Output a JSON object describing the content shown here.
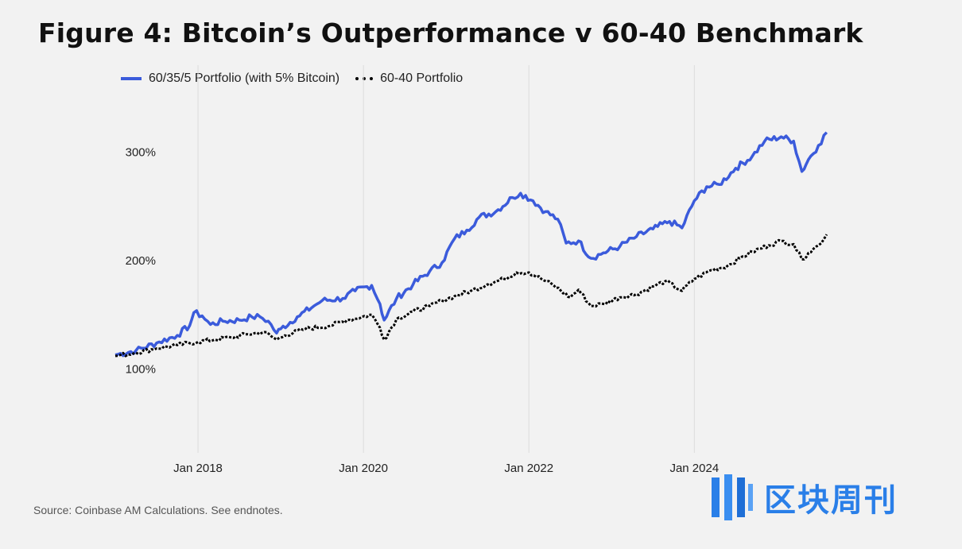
{
  "title": "Figure 4: Bitcoin’s Outperformance v 60-40 Benchmark",
  "source": "Source: Coinbase AM Calculations. See endnotes.",
  "watermark": {
    "text": "区块周刊"
  },
  "colors": {
    "series1": "#3b5bdb",
    "series2": "#000000",
    "grid": "#dcdcdc",
    "background": "#f2f2f2"
  },
  "chart_data": {
    "type": "line",
    "title": "Figure 4: Bitcoin’s Outperformance v 60-40 Benchmark",
    "xlabel": "",
    "ylabel": "",
    "xlim": [
      2017.0,
      2024.95
    ],
    "ylim": [
      30,
      380
    ],
    "grid": "vertical",
    "legend_position": "top-left",
    "x_ticks": [
      {
        "value": 2018,
        "label": "Jan 2018"
      },
      {
        "value": 2020,
        "label": "Jan 2020"
      },
      {
        "value": 2022,
        "label": "Jan 2022"
      },
      {
        "value": 2024,
        "label": "Jan 2024"
      }
    ],
    "y_ticks": [
      {
        "value": 100,
        "label": "100%"
      },
      {
        "value": 200,
        "label": "200%"
      },
      {
        "value": 300,
        "label": "300%"
      }
    ],
    "series": [
      {
        "name": "60/35/5 Portfolio (with 5% Bitcoin)",
        "color": "#3b5bdb",
        "style": "solid",
        "points": [
          [
            2017.0,
            113
          ],
          [
            2017.25,
            117
          ],
          [
            2017.5,
            124
          ],
          [
            2017.75,
            131
          ],
          [
            2017.9,
            140
          ],
          [
            2017.95,
            152
          ],
          [
            2018.05,
            149
          ],
          [
            2018.15,
            141
          ],
          [
            2018.3,
            144
          ],
          [
            2018.5,
            145
          ],
          [
            2018.65,
            148
          ],
          [
            2018.75,
            148
          ],
          [
            2018.85,
            144
          ],
          [
            2018.95,
            133
          ],
          [
            2019.0,
            137
          ],
          [
            2019.2,
            148
          ],
          [
            2019.4,
            158
          ],
          [
            2019.5,
            163
          ],
          [
            2019.75,
            165
          ],
          [
            2019.9,
            172
          ],
          [
            2020.1,
            177
          ],
          [
            2020.2,
            160
          ],
          [
            2020.25,
            145
          ],
          [
            2020.4,
            165
          ],
          [
            2020.6,
            178
          ],
          [
            2020.8,
            190
          ],
          [
            2020.95,
            198
          ],
          [
            2021.1,
            220
          ],
          [
            2021.25,
            228
          ],
          [
            2021.4,
            240
          ],
          [
            2021.6,
            245
          ],
          [
            2021.8,
            258
          ],
          [
            2021.9,
            262
          ],
          [
            2022.05,
            255
          ],
          [
            2022.2,
            245
          ],
          [
            2022.35,
            238
          ],
          [
            2022.45,
            216
          ],
          [
            2022.6,
            218
          ],
          [
            2022.75,
            202
          ],
          [
            2022.9,
            207
          ],
          [
            2023.1,
            213
          ],
          [
            2023.3,
            222
          ],
          [
            2023.5,
            229
          ],
          [
            2023.7,
            236
          ],
          [
            2023.85,
            230
          ],
          [
            2024.0,
            255
          ],
          [
            2024.15,
            268
          ],
          [
            2024.3,
            270
          ],
          [
            2024.5,
            285
          ],
          [
            2024.7,
            296
          ],
          [
            2024.85,
            310
          ],
          [
            2025.05,
            314
          ],
          [
            2025.2,
            310
          ],
          [
            2025.3,
            282
          ],
          [
            2025.38,
            293
          ],
          [
            2025.5,
            306
          ],
          [
            2025.6,
            318
          ]
        ]
      },
      {
        "name": "60-40 Portfolio",
        "color": "#000000",
        "style": "dotted",
        "points": [
          [
            2017.0,
            112
          ],
          [
            2017.25,
            115
          ],
          [
            2017.5,
            119
          ],
          [
            2017.75,
            122
          ],
          [
            2018.0,
            125
          ],
          [
            2018.2,
            127
          ],
          [
            2018.4,
            129
          ],
          [
            2018.6,
            132
          ],
          [
            2018.8,
            134
          ],
          [
            2018.95,
            127
          ],
          [
            2019.05,
            131
          ],
          [
            2019.3,
            137
          ],
          [
            2019.6,
            140
          ],
          [
            2019.8,
            145
          ],
          [
            2020.1,
            150
          ],
          [
            2020.2,
            138
          ],
          [
            2020.25,
            127
          ],
          [
            2020.4,
            146
          ],
          [
            2020.6,
            153
          ],
          [
            2020.8,
            158
          ],
          [
            2020.95,
            163
          ],
          [
            2021.1,
            167
          ],
          [
            2021.3,
            172
          ],
          [
            2021.5,
            178
          ],
          [
            2021.7,
            183
          ],
          [
            2021.85,
            189
          ],
          [
            2022.0,
            189
          ],
          [
            2022.15,
            183
          ],
          [
            2022.3,
            177
          ],
          [
            2022.5,
            166
          ],
          [
            2022.6,
            173
          ],
          [
            2022.75,
            158
          ],
          [
            2022.9,
            160
          ],
          [
            2023.1,
            166
          ],
          [
            2023.3,
            169
          ],
          [
            2023.5,
            176
          ],
          [
            2023.65,
            181
          ],
          [
            2023.85,
            172
          ],
          [
            2024.0,
            183
          ],
          [
            2024.2,
            191
          ],
          [
            2024.4,
            195
          ],
          [
            2024.55,
            202
          ],
          [
            2024.7,
            208
          ],
          [
            2024.9,
            214
          ],
          [
            2025.05,
            218
          ],
          [
            2025.2,
            215
          ],
          [
            2025.3,
            201
          ],
          [
            2025.38,
            207
          ],
          [
            2025.5,
            214
          ],
          [
            2025.6,
            224
          ]
        ]
      }
    ]
  }
}
